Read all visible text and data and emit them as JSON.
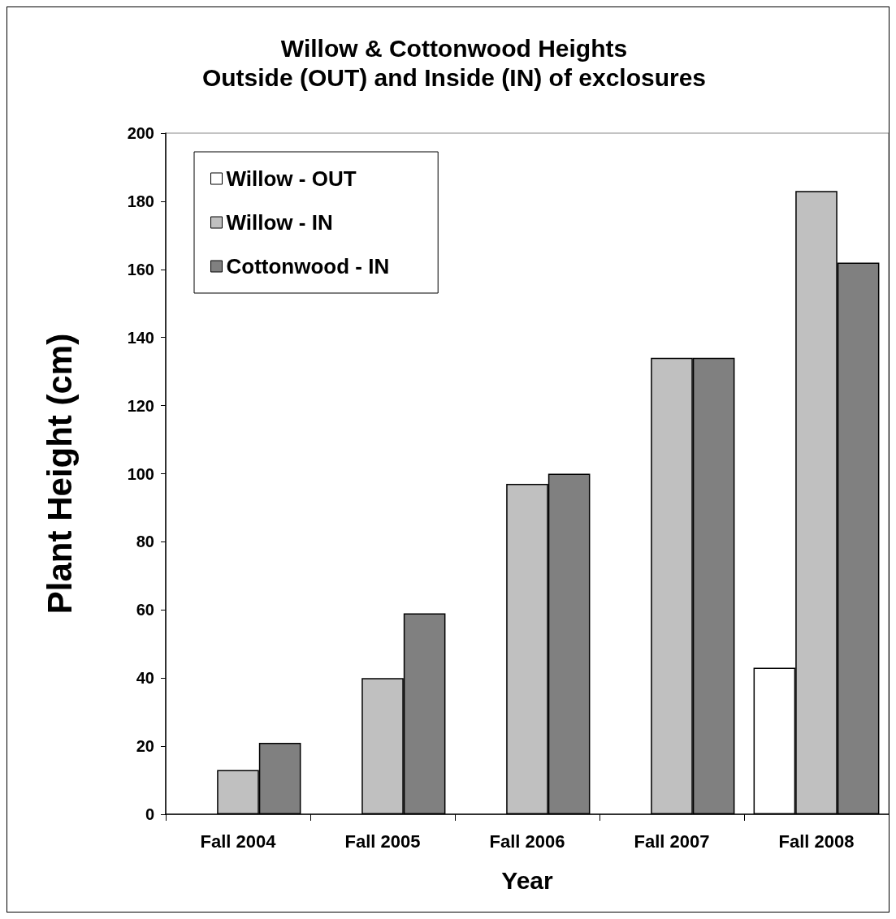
{
  "chart_data": {
    "type": "bar",
    "title": "Willow & Cottonwood Heights",
    "subtitle": "Outside (OUT) and Inside (IN) of exclosures",
    "xlabel": "Year",
    "ylabel": "Plant Height (cm)",
    "categories": [
      "Fall 2004",
      "Fall 2005",
      "Fall 2006",
      "Fall 2007",
      "Fall 2008"
    ],
    "series": [
      {
        "name": "Willow - OUT",
        "color": "#ffffff",
        "values": [
          null,
          null,
          null,
          null,
          43
        ]
      },
      {
        "name": "Willow - IN",
        "color": "#c0c0c0",
        "values": [
          13,
          40,
          97,
          134,
          183
        ]
      },
      {
        "name": "Cottonwood - IN",
        "color": "#808080",
        "values": [
          21,
          59,
          100,
          134,
          162
        ]
      }
    ],
    "ylim": [
      0,
      200
    ],
    "yticks": [
      0,
      20,
      40,
      60,
      80,
      100,
      120,
      140,
      160,
      180,
      200
    ],
    "grid": false,
    "legend": "top left"
  }
}
